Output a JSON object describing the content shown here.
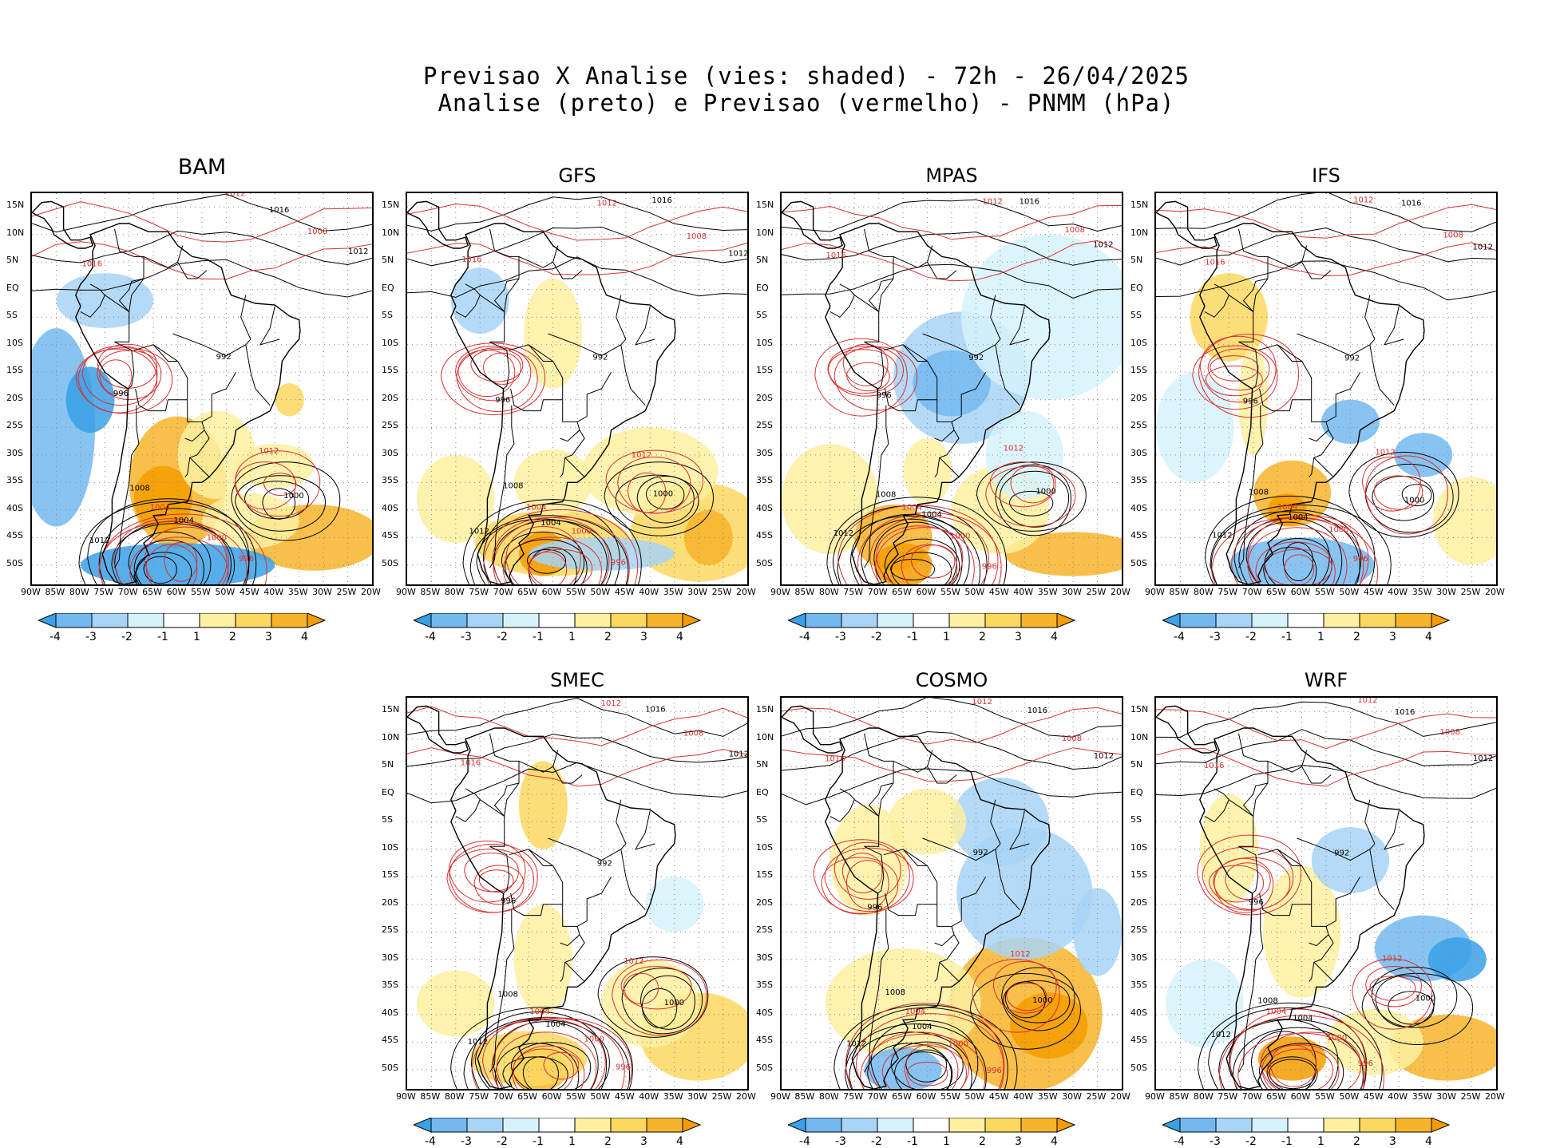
{
  "title_line1": "Previsao X Analise (vies: shaded) - 72h - 26/04/2025",
  "title_line2": "Analise (preto) e Previsao (vermelho) - PNMM (hPa)",
  "panels": [
    {
      "name": "BAM"
    },
    {
      "name": "GFS"
    },
    {
      "name": "MPAS"
    },
    {
      "name": "IFS"
    },
    {
      "name": "SMEC"
    },
    {
      "name": "COSMO"
    },
    {
      "name": "WRF"
    }
  ],
  "lat_labels": [
    "15N",
    "10N",
    "5N",
    "EQ",
    "5S",
    "10S",
    "15S",
    "20S",
    "25S",
    "30S",
    "35S",
    "40S",
    "45S",
    "50S"
  ],
  "lon_labels": [
    "90W",
    "85W",
    "80W",
    "75W",
    "70W",
    "65W",
    "60W",
    "55W",
    "50W",
    "45W",
    "40W",
    "35W",
    "30W",
    "25W",
    "20W"
  ],
  "colorbar_labels": [
    "-4",
    "-3",
    "-2",
    "-1",
    "1",
    "2",
    "3",
    "4"
  ],
  "colorbar_colors": [
    "#3aa0e8",
    "#74b8f0",
    "#a8d4f6",
    "#d6f2fa",
    "#ffffff",
    "#fdf0a0",
    "#fbd860",
    "#f7b42a",
    "#f59c00"
  ],
  "contour_labels": {
    "black": [
      "1016",
      "1012",
      "1012",
      "1008",
      "1004",
      "1000",
      "996",
      "992"
    ],
    "red": [
      "1012",
      "1008",
      "1016",
      "1012",
      "1000",
      "1004",
      "996"
    ]
  },
  "colors": {
    "analysis": "#000000",
    "forecast": "#d93030",
    "coast": "#000000"
  }
}
